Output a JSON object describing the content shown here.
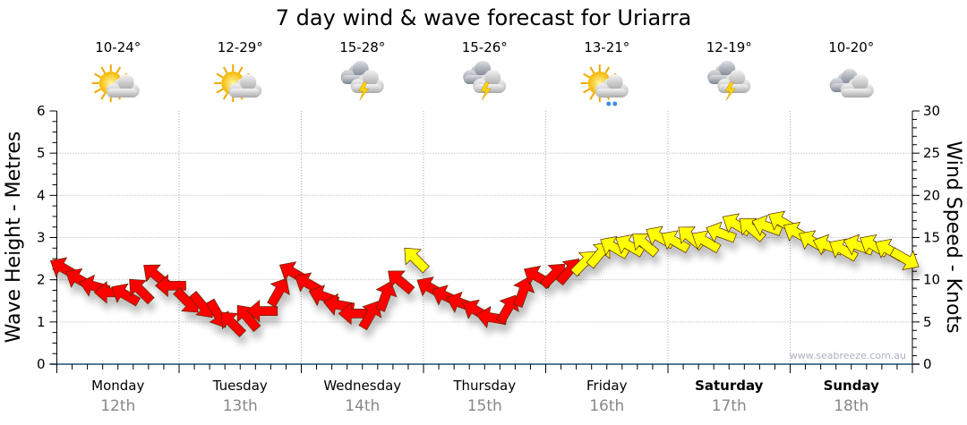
{
  "chart_data": {
    "type": "scatter",
    "title": "7 day wind & wave forecast for Uriarra",
    "ylabel_left": "Wave Height - Metres",
    "ylabel_right": "Wind Speed - Knots",
    "ylim_left": [
      0,
      6
    ],
    "ylim_right": [
      0,
      30
    ],
    "yticks_left": [
      "0",
      "1",
      "2",
      "3",
      "4",
      "5",
      "6"
    ],
    "yticks_right": [
      "0",
      "5",
      "10",
      "15",
      "20",
      "25",
      "30"
    ],
    "grid": true,
    "watermark": "www.seabreeze.com.au",
    "days": [
      {
        "name": "Monday",
        "date": "12th",
        "temp": "10-24°",
        "icon": "sun-cloud",
        "bold": false
      },
      {
        "name": "Tuesday",
        "date": "13th",
        "temp": "12-29°",
        "icon": "sun-cloud",
        "bold": false
      },
      {
        "name": "Wednesday",
        "date": "14th",
        "temp": "15-28°",
        "icon": "storm",
        "bold": false
      },
      {
        "name": "Thursday",
        "date": "15th",
        "temp": "15-26°",
        "icon": "storm",
        "bold": false
      },
      {
        "name": "Friday",
        "date": "16th",
        "temp": "13-21°",
        "icon": "sun-cloud-rain",
        "bold": false
      },
      {
        "name": "Saturday",
        "date": "17th",
        "temp": "12-19°",
        "icon": "storm",
        "bold": true
      },
      {
        "name": "Sunday",
        "date": "18th",
        "temp": "10-20°",
        "icon": "cloud",
        "bold": true
      }
    ],
    "wind_threshold_knots": 12,
    "colors": {
      "low": "#ff0000",
      "high": "#ffff00"
    },
    "wind_series": {
      "name": "Wind",
      "points_per_day": 8,
      "speed_knots": [
        11.3,
        10.0,
        9.2,
        8.5,
        8.2,
        8.7,
        10.5,
        9.3,
        7.5,
        7.0,
        6.0,
        4.8,
        5.5,
        6.3,
        8.5,
        10.8,
        9.5,
        8.0,
        7.0,
        6.0,
        5.8,
        8.0,
        9.8,
        12.4,
        9.0,
        8.0,
        7.2,
        6.3,
        5.5,
        6.5,
        8.5,
        10.3,
        10.5,
        11.0,
        12.0,
        13.0,
        13.8,
        14.0,
        14.2,
        15.0,
        14.5,
        15.0,
        14.5,
        15.5,
        16.5,
        16.0,
        16.3,
        16.8,
        15.5,
        14.5,
        14.0,
        13.5,
        14.0,
        14.0,
        13.5,
        12.5
      ],
      "arrow_bearing_deg": [
        300,
        300,
        285,
        270,
        300,
        315,
        310,
        270,
        135,
        140,
        150,
        315,
        320,
        270,
        30,
        300,
        300,
        290,
        280,
        270,
        30,
        20,
        310,
        315,
        300,
        295,
        290,
        300,
        280,
        30,
        20,
        300,
        45,
        40,
        45,
        40,
        300,
        300,
        310,
        300,
        300,
        310,
        300,
        290,
        300,
        310,
        290,
        300,
        300,
        300,
        290,
        300,
        290,
        300,
        300,
        120
      ]
    }
  }
}
